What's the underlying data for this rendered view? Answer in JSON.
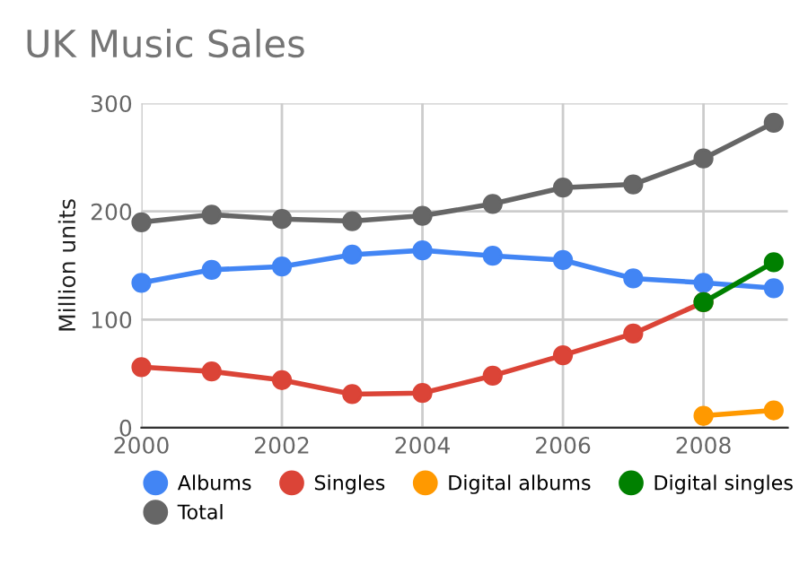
{
  "chart_data": {
    "type": "line",
    "title": "UK Music Sales",
    "ylabel": "Million units",
    "x": [
      2000,
      2001,
      2002,
      2003,
      2004,
      2005,
      2006,
      2007,
      2008,
      2009
    ],
    "series": [
      {
        "name": "Albums",
        "color": "#4285f4",
        "values": [
          134,
          146,
          149,
          160,
          164,
          159,
          155,
          138,
          134,
          129
        ]
      },
      {
        "name": "Singles",
        "color": "#db4437",
        "values": [
          56,
          52,
          44,
          31,
          32,
          48,
          67,
          87,
          116,
          null
        ]
      },
      {
        "name": "Digital albums",
        "color": "#ff9900",
        "values": [
          null,
          null,
          null,
          null,
          null,
          null,
          null,
          null,
          11,
          16
        ]
      },
      {
        "name": "Digital singles",
        "color": "#008000",
        "values": [
          null,
          null,
          null,
          null,
          null,
          null,
          null,
          null,
          116,
          153
        ]
      },
      {
        "name": "Total",
        "color": "#666666",
        "values": [
          190,
          197,
          193,
          191,
          196,
          207,
          222,
          225,
          249,
          282
        ]
      }
    ],
    "xlim": [
      2000,
      2009.2
    ],
    "xticks": [
      2000,
      2002,
      2004,
      2006,
      2008
    ],
    "ylim": [
      0,
      300
    ],
    "yticks": [
      0,
      100,
      200,
      300
    ],
    "grid": true,
    "legend": "bottom",
    "marker": "circle",
    "line_style": "solid"
  }
}
